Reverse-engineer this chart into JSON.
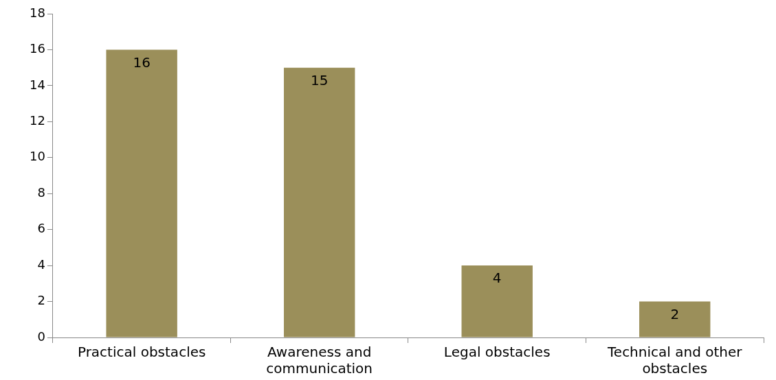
{
  "chart_data": {
    "type": "bar",
    "categories": [
      "Practical obstacles",
      "Awareness and communication",
      "Legal obstacles",
      "Technical and other obstacles"
    ],
    "values": [
      16,
      15,
      4,
      2
    ],
    "color": "#9b8f5a",
    "ylim": [
      0,
      18
    ],
    "yticks": [
      0,
      2,
      4,
      6,
      8,
      10,
      12,
      14,
      16,
      18
    ],
    "grid": false,
    "legend": false,
    "data_labels": true
  }
}
